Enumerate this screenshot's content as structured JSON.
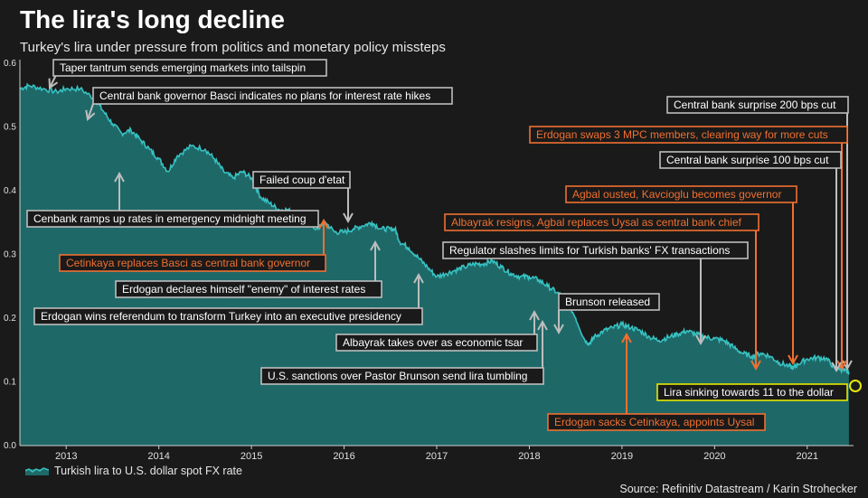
{
  "title": "The lira's long decline",
  "subtitle": "Turkey's lira under pressure from politics and monetary policy missteps",
  "source": "Source: Refinitiv Datastream / Karin Strohecker",
  "colors": {
    "background": "#1a1a1a",
    "line": "#37c2c2",
    "area": "#1f6868",
    "annotation_gray": "#bdbdbd",
    "annotation_orange": "#f07030",
    "annotation_yellow": "#e8e800"
  },
  "chart_data": {
    "type": "area",
    "title": "The lira's long decline",
    "subtitle": "Turkey's lira under pressure from politics and monetary policy missteps",
    "xlabel": "",
    "ylabel": "",
    "xlim": [
      2012.5,
      2021.5
    ],
    "ylim": [
      0,
      0.6
    ],
    "yticks": [
      0.0,
      0.1,
      0.2,
      0.3,
      0.4,
      0.5,
      0.6
    ],
    "ytick_labels": [
      "0.0",
      "0.1",
      "0.2",
      "0.3",
      "0.4",
      "0.5",
      "0.6"
    ],
    "xticks": [
      2013,
      2014,
      2015,
      2016,
      2017,
      2018,
      2019,
      2020,
      2021
    ],
    "xtick_labels": [
      "2013",
      "2014",
      "2015",
      "2016",
      "2017",
      "2018",
      "2019",
      "2020",
      "2021"
    ],
    "grid": false,
    "legend": {
      "position": "bottom-left",
      "label": "Turkish lira to U.S. dollar spot FX rate"
    },
    "series": [
      {
        "name": "Turkish lira to U.S. dollar spot FX rate",
        "x": [
          2012.5,
          2012.6,
          2012.75,
          2012.9,
          2013.0,
          2013.15,
          2013.3,
          2013.4,
          2013.5,
          2013.6,
          2013.7,
          2013.8,
          2013.9,
          2014.0,
          2014.1,
          2014.2,
          2014.35,
          2014.5,
          2014.6,
          2014.7,
          2014.8,
          2014.9,
          2015.0,
          2015.1,
          2015.2,
          2015.3,
          2015.4,
          2015.5,
          2015.6,
          2015.7,
          2015.75,
          2015.8,
          2015.9,
          2016.0,
          2016.1,
          2016.2,
          2016.3,
          2016.4,
          2016.5,
          2016.55,
          2016.6,
          2016.7,
          2016.8,
          2016.9,
          2017.0,
          2017.1,
          2017.2,
          2017.3,
          2017.4,
          2017.5,
          2017.6,
          2017.7,
          2017.8,
          2017.9,
          2018.0,
          2018.1,
          2018.2,
          2018.3,
          2018.4,
          2018.5,
          2018.6,
          2018.65,
          2018.7,
          2018.8,
          2018.9,
          2019.0,
          2019.1,
          2019.2,
          2019.3,
          2019.4,
          2019.5,
          2019.6,
          2019.7,
          2019.8,
          2019.9,
          2020.0,
          2020.1,
          2020.2,
          2020.3,
          2020.4,
          2020.5,
          2020.6,
          2020.7,
          2020.8,
          2020.85,
          2020.9,
          2021.0,
          2021.1,
          2021.2,
          2021.3,
          2021.35,
          2021.4,
          2021.45
        ],
        "values": [
          0.56,
          0.565,
          0.56,
          0.555,
          0.56,
          0.56,
          0.545,
          0.525,
          0.505,
          0.49,
          0.495,
          0.48,
          0.465,
          0.45,
          0.43,
          0.455,
          0.47,
          0.465,
          0.45,
          0.43,
          0.42,
          0.43,
          0.42,
          0.39,
          0.38,
          0.37,
          0.37,
          0.355,
          0.355,
          0.34,
          0.345,
          0.35,
          0.335,
          0.335,
          0.34,
          0.345,
          0.35,
          0.34,
          0.34,
          0.34,
          0.32,
          0.31,
          0.295,
          0.28,
          0.265,
          0.27,
          0.275,
          0.28,
          0.285,
          0.285,
          0.29,
          0.28,
          0.27,
          0.265,
          0.265,
          0.26,
          0.25,
          0.24,
          0.23,
          0.2,
          0.165,
          0.16,
          0.17,
          0.18,
          0.185,
          0.19,
          0.185,
          0.18,
          0.17,
          0.165,
          0.17,
          0.175,
          0.18,
          0.175,
          0.17,
          0.168,
          0.165,
          0.155,
          0.145,
          0.14,
          0.145,
          0.14,
          0.13,
          0.125,
          0.122,
          0.128,
          0.136,
          0.138,
          0.137,
          0.122,
          0.121,
          0.117,
          0.115
        ]
      }
    ],
    "annotations": [
      {
        "text": "Taper tantrum sends emerging markets into tailspin",
        "style": "gray"
      },
      {
        "text": "Central bank governor Basci indicates no plans for interest rate hikes",
        "style": "gray"
      },
      {
        "text": "Cenbank ramps up rates in emergency midnight meeting",
        "style": "gray"
      },
      {
        "text": "Cetinkaya replaces Basci as central bank governor",
        "style": "orange"
      },
      {
        "text": "Failed coup d'etat",
        "style": "gray"
      },
      {
        "text": "Erdogan declares himself \"enemy\" of interest rates",
        "style": "gray"
      },
      {
        "text": "Erdogan wins referendum to transform Turkey into an executive presidency",
        "style": "gray"
      },
      {
        "text": "Regulator slashes limits for Turkish banks' FX transactions",
        "style": "gray"
      },
      {
        "text": "Albayrak takes over as economic tsar",
        "style": "gray"
      },
      {
        "text": "U.S. sanctions over Pastor Brunson send lira tumbling",
        "style": "gray"
      },
      {
        "text": "Brunson released",
        "style": "gray"
      },
      {
        "text": "Central bank surprise 200 bps cut",
        "style": "gray"
      },
      {
        "text": "Erdogan swaps 3 MPC members, clearing way for more cuts",
        "style": "orange"
      },
      {
        "text": "Central bank surprise 100 bps cut",
        "style": "gray"
      },
      {
        "text": "Agbal ousted, Kavcioglu becomes governor",
        "style": "orange"
      },
      {
        "text": "Albayrak resigns, Agbal replaces Uysal as central bank chief",
        "style": "orange"
      },
      {
        "text": "Erdogan sacks Cetinkaya, appoints Uysal",
        "style": "orange"
      },
      {
        "text": "Lira sinking towards 11 to the dollar",
        "style": "yellow"
      }
    ]
  }
}
